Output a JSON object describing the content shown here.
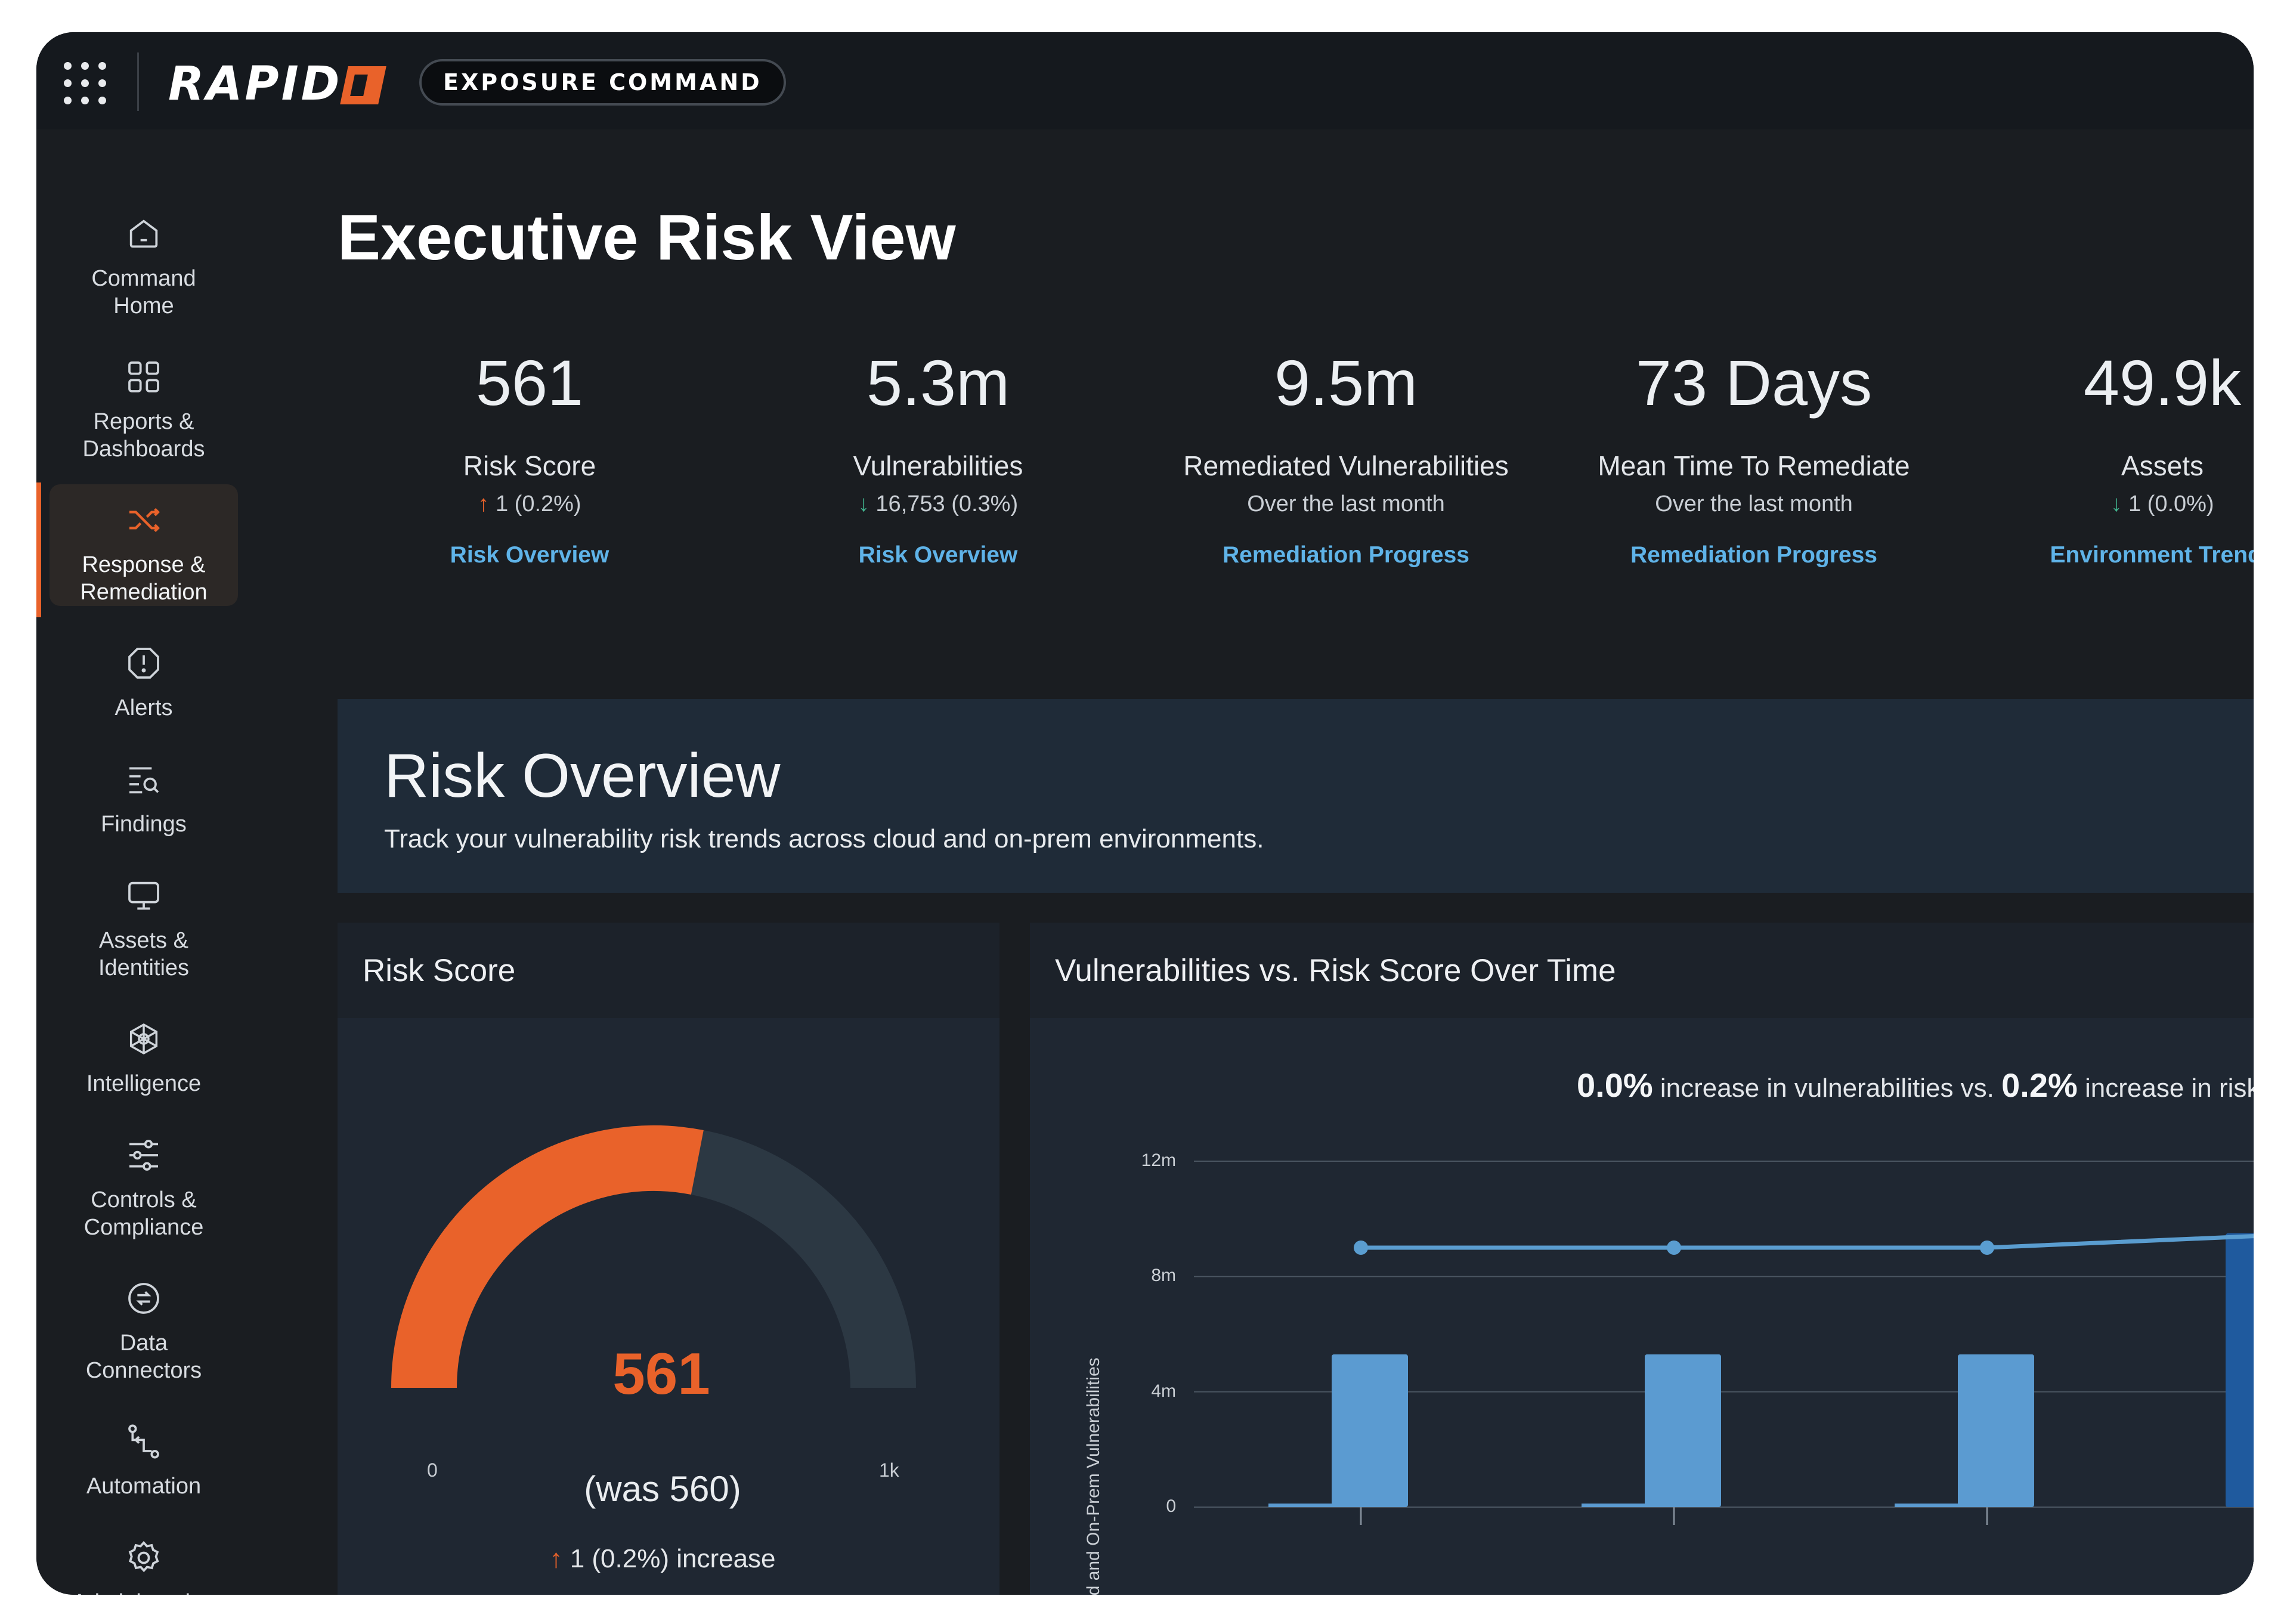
{
  "header": {
    "logo_text": "RAPID",
    "product_badge": "EXPOSURE COMMAND"
  },
  "sidebar": {
    "items": [
      {
        "label": "Command\nHome",
        "icon": "home-icon"
      },
      {
        "label": "Reports &\nDashboards",
        "icon": "dashboard-icon"
      },
      {
        "label": "Response &\nRemediation",
        "icon": "shuffle-icon",
        "active": true
      },
      {
        "label": "Alerts",
        "icon": "alert-icon"
      },
      {
        "label": "Findings",
        "icon": "findings-icon"
      },
      {
        "label": "Assets &\nIdentities",
        "icon": "monitor-icon"
      },
      {
        "label": "Intelligence",
        "icon": "network-icon"
      },
      {
        "label": "Controls &\nCompliance",
        "icon": "sliders-icon"
      },
      {
        "label": "Data\nConnectors",
        "icon": "connector-icon"
      },
      {
        "label": "Automation",
        "icon": "automation-icon"
      },
      {
        "label": "Administration",
        "icon": "gear-icon"
      }
    ]
  },
  "page": {
    "title": "Executive Risk View"
  },
  "kpis": [
    {
      "value": "561",
      "label": "Risk Score",
      "arrow": "↑",
      "change": "1 (0.2%)",
      "direction": "up",
      "link": "Risk Overview"
    },
    {
      "value": "5.3m",
      "label": "Vulnerabilities",
      "arrow": "↓",
      "change": "16,753 (0.3%)",
      "direction": "down",
      "link": "Risk Overview"
    },
    {
      "value": "9.5m",
      "label": "Remediated Vulnerabilities",
      "note": "Over the last month",
      "link": "Remediation Progress"
    },
    {
      "value": "73 Days",
      "label": "Mean Time To Remediate",
      "note": "Over the last month",
      "link": "Remediation Progress"
    },
    {
      "value": "49.9k",
      "label": "Assets",
      "arrow": "↓",
      "change": "1 (0.0%)",
      "direction": "down",
      "link": "Environment Trends"
    }
  ],
  "risk_overview": {
    "title": "Risk Overview",
    "description": "Track your vulnerability risk trends across cloud and on-prem environments."
  },
  "risk_score_card": {
    "title": "Risk Score",
    "value": "561",
    "was": "(was 560)",
    "arrow": "↑",
    "increase": "1 (0.2%) increase",
    "min_label": "0",
    "max_label": "1k",
    "fill_fraction": 0.561,
    "colors": {
      "fill": "#e9622a",
      "track": "#2c3843"
    }
  },
  "trend_card": {
    "title": "Vulnerabilities vs. Risk Score Over Time",
    "summary_pct_1": "0.0%",
    "summary_text_1": " increase in vulnerabilities vs. ",
    "summary_pct_2": "0.2%",
    "summary_text_2": " increase in risk sc",
    "y_axis_label": "Cloud and On-Prem Vulnerabilities"
  },
  "chart_data": {
    "type": "bar",
    "ylabel": "Cloud and On-Prem Vulnerabilities",
    "yticks": [
      "0",
      "4m",
      "8m",
      "12m"
    ],
    "ylim": [
      0,
      12
    ],
    "grid": true,
    "series": [
      {
        "values": [
          5.3,
          5.3,
          5.3,
          9.5
        ],
        "color": "#5b9bd1",
        "last_color": "#1f5a9e"
      },
      {
        "values": [
          9.0,
          9.0,
          9.0,
          9.4
        ],
        "color": "#5a9dd0"
      }
    ]
  }
}
